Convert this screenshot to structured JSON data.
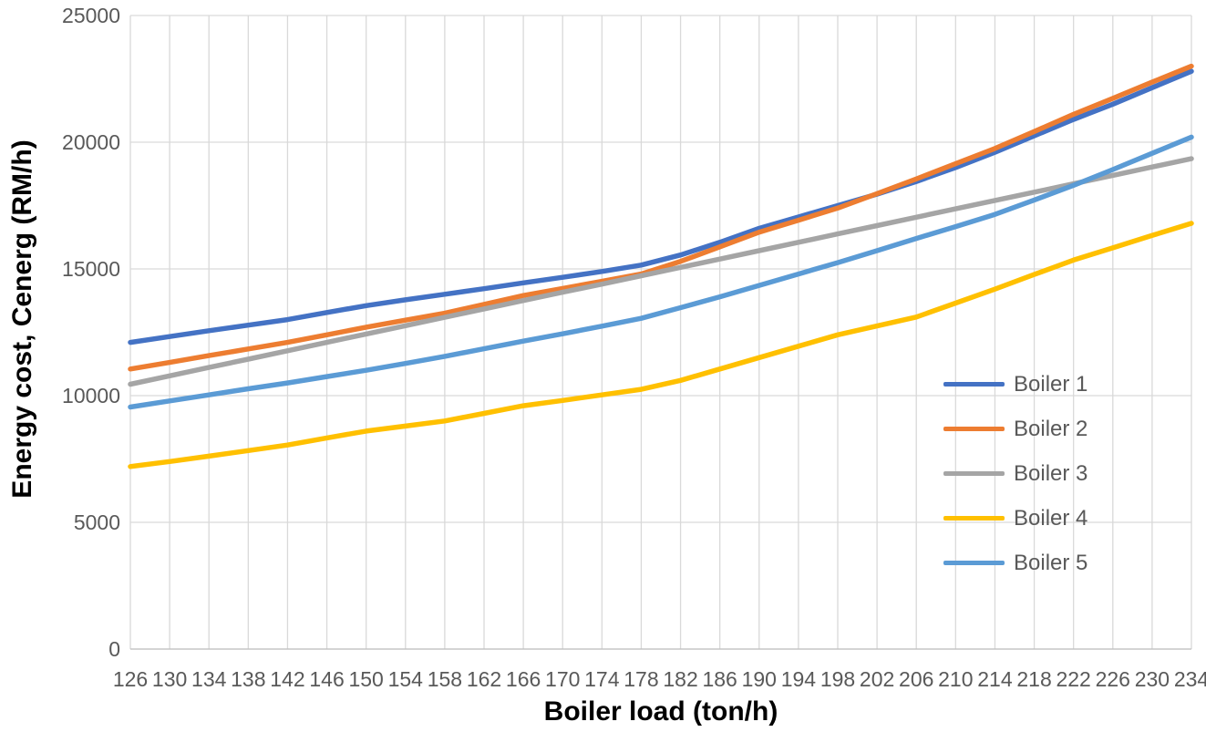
{
  "chart_data": {
    "type": "line",
    "xlabel": "Boiler load (ton/h)",
    "ylabel": "Energy cost, Cenerg (RM/h)",
    "x": [
      126,
      130,
      134,
      138,
      142,
      146,
      150,
      154,
      158,
      162,
      166,
      170,
      174,
      178,
      182,
      186,
      190,
      194,
      198,
      202,
      206,
      210,
      214,
      218,
      222,
      226,
      230,
      234
    ],
    "xlim": [
      126,
      234
    ],
    "ylim": [
      0,
      25000
    ],
    "yticks": [
      0,
      5000,
      10000,
      15000,
      20000,
      25000
    ],
    "grid": true,
    "legend_position": "right-middle",
    "colors": {
      "gridline": "#d9d9d9",
      "axis_line": "#bfbfbf",
      "tick_text": "#595959",
      "legend_text": "#595959"
    },
    "series": [
      {
        "name": "Boiler 1",
        "color": "#4472C4",
        "values": [
          12100,
          12330,
          12560,
          12780,
          13000,
          13280,
          13550,
          13780,
          14000,
          14220,
          14450,
          14670,
          14900,
          15150,
          15550,
          16050,
          16600,
          17050,
          17500,
          17950,
          18450,
          19000,
          19600,
          20250,
          20900,
          21500,
          22150,
          22800
        ]
      },
      {
        "name": "Boiler 2",
        "color": "#ED7D31",
        "values": [
          11050,
          11310,
          11580,
          11840,
          12100,
          12400,
          12700,
          12980,
          13250,
          13600,
          13950,
          14230,
          14510,
          14800,
          15300,
          15870,
          16450,
          16920,
          17400,
          17970,
          18550,
          19150,
          19750,
          20420,
          21100,
          21730,
          22370,
          23000
        ]
      },
      {
        "name": "Boiler 3",
        "color": "#A5A5A5",
        "values": [
          10450,
          10780,
          11110,
          11440,
          11770,
          12100,
          12430,
          12760,
          13090,
          13420,
          13750,
          14080,
          14400,
          14730,
          15060,
          15390,
          15720,
          16050,
          16380,
          16710,
          17040,
          17370,
          17700,
          18030,
          18360,
          18690,
          19020,
          19350
        ]
      },
      {
        "name": "Boiler 4",
        "color": "#FFC000",
        "values": [
          7200,
          7400,
          7610,
          7830,
          8050,
          8330,
          8600,
          8800,
          9000,
          9300,
          9600,
          9810,
          10030,
          10250,
          10600,
          11050,
          11500,
          11950,
          12400,
          12750,
          13100,
          13650,
          14200,
          14780,
          15350,
          15830,
          16320,
          16800
        ]
      },
      {
        "name": "Boiler 5",
        "color": "#5B9BD5",
        "values": [
          9550,
          9790,
          10030,
          10270,
          10500,
          10750,
          11000,
          11270,
          11550,
          11850,
          12150,
          12440,
          12740,
          13050,
          13470,
          13900,
          14350,
          14800,
          15250,
          15720,
          16200,
          16670,
          17150,
          17720,
          18300,
          18920,
          19560,
          20200
        ]
      }
    ]
  }
}
